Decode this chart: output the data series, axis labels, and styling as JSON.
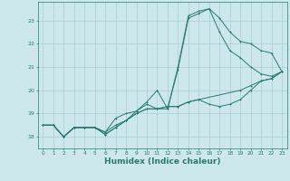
{
  "background_color": "#cce8ec",
  "grid_color": "#aacdd4",
  "line_color": "#2a7a72",
  "xlabel": "Humidex (Indice chaleur)",
  "xlabel_fontsize": 6.5,
  "ylim": [
    17.5,
    23.8
  ],
  "xlim": [
    -0.5,
    23.5
  ],
  "series1": [
    [
      0,
      18.5
    ],
    [
      1,
      18.5
    ],
    [
      2,
      18.0
    ],
    [
      3,
      18.4
    ],
    [
      4,
      18.4
    ],
    [
      5,
      18.4
    ],
    [
      6,
      18.2
    ],
    [
      7,
      18.8
    ],
    [
      8,
      19.0
    ],
    [
      9,
      19.1
    ],
    [
      10,
      19.5
    ],
    [
      11,
      20.0
    ],
    [
      12,
      19.2
    ],
    [
      13,
      21.0
    ],
    [
      14,
      23.2
    ],
    [
      15,
      23.4
    ],
    [
      16,
      23.5
    ],
    [
      17,
      23.1
    ],
    [
      18,
      22.5
    ],
    [
      19,
      22.1
    ],
    [
      20,
      22.0
    ],
    [
      21,
      21.7
    ],
    [
      22,
      21.6
    ],
    [
      23,
      20.8
    ]
  ],
  "series2": [
    [
      0,
      18.5
    ],
    [
      1,
      18.5
    ],
    [
      2,
      18.0
    ],
    [
      3,
      18.4
    ],
    [
      4,
      18.4
    ],
    [
      5,
      18.4
    ],
    [
      6,
      18.2
    ],
    [
      7,
      18.5
    ],
    [
      8,
      18.7
    ],
    [
      9,
      19.1
    ],
    [
      10,
      19.4
    ],
    [
      11,
      19.2
    ],
    [
      12,
      19.2
    ],
    [
      13,
      20.9
    ],
    [
      14,
      23.1
    ],
    [
      15,
      23.3
    ],
    [
      16,
      23.5
    ],
    [
      17,
      22.5
    ],
    [
      18,
      21.7
    ],
    [
      19,
      21.4
    ],
    [
      20,
      21.0
    ],
    [
      21,
      20.7
    ],
    [
      22,
      20.6
    ],
    [
      23,
      20.8
    ]
  ],
  "series3": [
    [
      0,
      18.5
    ],
    [
      1,
      18.5
    ],
    [
      2,
      18.0
    ],
    [
      3,
      18.4
    ],
    [
      4,
      18.4
    ],
    [
      5,
      18.4
    ],
    [
      6,
      18.1
    ],
    [
      7,
      18.4
    ],
    [
      8,
      18.7
    ],
    [
      9,
      19.0
    ],
    [
      10,
      19.2
    ],
    [
      11,
      19.2
    ],
    [
      12,
      19.3
    ],
    [
      13,
      19.3
    ],
    [
      14,
      19.5
    ],
    [
      15,
      19.6
    ],
    [
      16,
      19.4
    ],
    [
      17,
      19.3
    ],
    [
      18,
      19.4
    ],
    [
      19,
      19.6
    ],
    [
      20,
      20.0
    ],
    [
      21,
      20.4
    ],
    [
      22,
      20.5
    ],
    [
      23,
      20.8
    ]
  ],
  "series4": [
    [
      0,
      18.5
    ],
    [
      1,
      18.5
    ],
    [
      2,
      18.0
    ],
    [
      3,
      18.4
    ],
    [
      4,
      18.4
    ],
    [
      5,
      18.4
    ],
    [
      6,
      18.1
    ],
    [
      7,
      18.4
    ],
    [
      8,
      18.7
    ],
    [
      9,
      19.0
    ],
    [
      10,
      19.2
    ],
    [
      11,
      19.2
    ],
    [
      12,
      19.3
    ],
    [
      13,
      19.3
    ],
    [
      14,
      19.5
    ],
    [
      15,
      19.6
    ],
    [
      19,
      20.0
    ],
    [
      20,
      20.2
    ],
    [
      21,
      20.4
    ],
    [
      22,
      20.5
    ],
    [
      23,
      20.8
    ]
  ]
}
